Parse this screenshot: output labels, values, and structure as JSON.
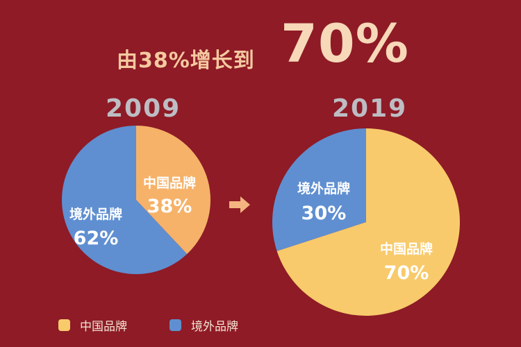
{
  "headline": {
    "prefix": "由38%增长到",
    "highlight": "70%"
  },
  "colors": {
    "background": "#8e1b26",
    "domestic": "#f8ca6b",
    "domestic_2009": "#f6b269",
    "foreign": "#5f8fd1",
    "arrow": "#f3b47f"
  },
  "chart_data": [
    {
      "type": "pie",
      "title": "2009",
      "slices": [
        {
          "label": "中国品牌",
          "value": 38,
          "value_label": "38%"
        },
        {
          "label": "境外品牌",
          "value": 62,
          "value_label": "62%"
        }
      ]
    },
    {
      "type": "pie",
      "title": "2019",
      "slices": [
        {
          "label": "中国品牌",
          "value": 70,
          "value_label": "70%"
        },
        {
          "label": "境外品牌",
          "value": 30,
          "value_label": "30%"
        }
      ]
    }
  ],
  "legend": [
    {
      "label": "中国品牌",
      "color": "#f8ca6b"
    },
    {
      "label": "境外品牌",
      "color": "#5f8fd1"
    }
  ]
}
